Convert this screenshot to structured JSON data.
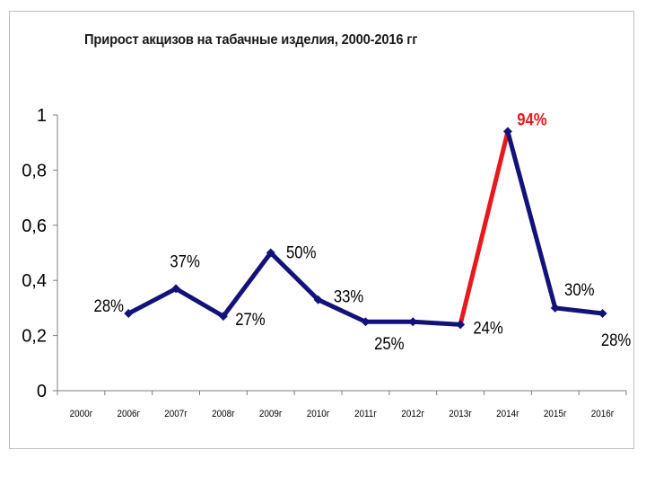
{
  "chart_data": {
    "type": "line",
    "title": "Прирост акцизов на табачные изделия, 2000-2016 гг",
    "xlabel": "",
    "ylabel": "",
    "categories": [
      "2000г",
      "2006г",
      "2007г",
      "2008г",
      "2009г",
      "2010г",
      "2011г",
      "2012г",
      "2013г",
      "2014г",
      "2015г",
      "2016г"
    ],
    "series": [
      {
        "values": [
          null,
          0.28,
          0.37,
          0.27,
          0.5,
          0.33,
          0.25,
          0.25,
          0.24,
          0.94,
          0.3,
          0.28
        ]
      }
    ],
    "data_labels": [
      "",
      "28%",
      "37%",
      "27%",
      "50%",
      "33%",
      "25%",
      "",
      "24%",
      "94%",
      "30%",
      "28%"
    ],
    "highlight_segment": {
      "from_index": 8,
      "to_index": 9,
      "color": "#e8181c"
    },
    "highlight_label_index": 9,
    "line_color": "#12127a",
    "ylim": [
      0,
      1
    ],
    "yticks": [
      0,
      0.2,
      0.4,
      0.6,
      0.8,
      1
    ],
    "ytick_labels": [
      "0",
      "0,2",
      "0,4",
      "0,6",
      "0,8",
      "1"
    ],
    "grid": false,
    "legend": "none"
  }
}
